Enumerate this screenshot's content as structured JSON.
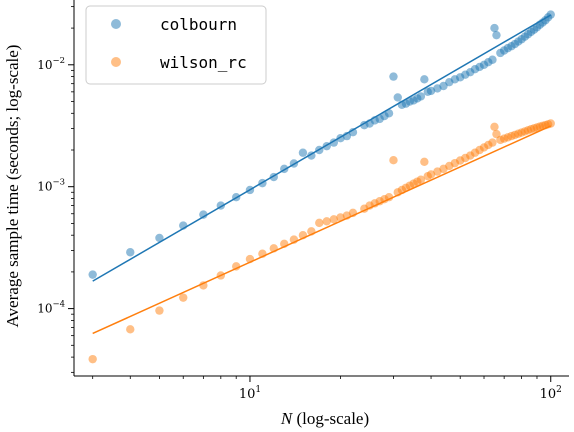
{
  "chart_data": {
    "type": "scatter",
    "xscale": "log",
    "yscale": "log",
    "xlim": [
      2.6,
      115
    ],
    "ylim": [
      2.8e-05,
      0.034
    ],
    "xlabel": "N (log-scale)",
    "xlabel_var": "N",
    "xlabel_rest": " (log-scale)",
    "ylabel": "Average sample time (seconds; log-scale)",
    "xticks": [
      {
        "value": 10,
        "base": "10",
        "exp": "1"
      },
      {
        "value": 100,
        "base": "10",
        "exp": "2"
      }
    ],
    "yticks": [
      {
        "value": 0.0001,
        "base": "10",
        "exp": "−4"
      },
      {
        "value": 0.001,
        "base": "10",
        "exp": "−3"
      },
      {
        "value": 0.01,
        "base": "10",
        "exp": "−2"
      }
    ],
    "legend_position": "top-left",
    "grid": false,
    "series": [
      {
        "name": "colbourn",
        "color": "#1f77b4",
        "points": [
          [
            3,
            0.00019
          ],
          [
            4,
            0.00029
          ],
          [
            5,
            0.00038
          ],
          [
            6,
            0.00048
          ],
          [
            7,
            0.00059
          ],
          [
            8,
            0.0007
          ],
          [
            9,
            0.00082
          ],
          [
            10,
            0.00094
          ],
          [
            11,
            0.00107
          ],
          [
            12,
            0.0012
          ],
          [
            13,
            0.0014
          ],
          [
            14,
            0.00155
          ],
          [
            15,
            0.0019
          ],
          [
            16,
            0.0018
          ],
          [
            17,
            0.002
          ],
          [
            18,
            0.00215
          ],
          [
            19,
            0.0023
          ],
          [
            20,
            0.0025
          ],
          [
            21,
            0.0026
          ],
          [
            22,
            0.0028
          ],
          [
            24,
            0.0032
          ],
          [
            25,
            0.0033
          ],
          [
            26,
            0.0035
          ],
          [
            27,
            0.0036
          ],
          [
            28,
            0.0038
          ],
          [
            29,
            0.004
          ],
          [
            30,
            0.008
          ],
          [
            31,
            0.0054
          ],
          [
            32,
            0.0047
          ],
          [
            33,
            0.0048
          ],
          [
            34,
            0.005
          ],
          [
            35,
            0.0051
          ],
          [
            36,
            0.0053
          ],
          [
            37,
            0.0055
          ],
          [
            38,
            0.0076
          ],
          [
            39,
            0.006
          ],
          [
            40,
            0.0061
          ],
          [
            42,
            0.0064
          ],
          [
            44,
            0.0067
          ],
          [
            46,
            0.0072
          ],
          [
            48,
            0.0076
          ],
          [
            50,
            0.0079
          ],
          [
            52,
            0.0083
          ],
          [
            54,
            0.0087
          ],
          [
            56,
            0.0092
          ],
          [
            58,
            0.0096
          ],
          [
            60,
            0.01
          ],
          [
            62,
            0.0105
          ],
          [
            64,
            0.011
          ],
          [
            65,
            0.02
          ],
          [
            66,
            0.0175
          ],
          [
            68,
            0.0125
          ],
          [
            70,
            0.0131
          ],
          [
            72,
            0.0137
          ],
          [
            74,
            0.0142
          ],
          [
            76,
            0.0148
          ],
          [
            78,
            0.0155
          ],
          [
            80,
            0.0162
          ],
          [
            82,
            0.017
          ],
          [
            84,
            0.0178
          ],
          [
            86,
            0.0186
          ],
          [
            88,
            0.0194
          ],
          [
            90,
            0.0203
          ],
          [
            92,
            0.0213
          ],
          [
            94,
            0.0222
          ],
          [
            96,
            0.0232
          ],
          [
            98,
            0.0245
          ],
          [
            100,
            0.0258
          ]
        ],
        "fit": [
          [
            3,
            0.000168
          ],
          [
            100,
            0.0256
          ]
        ]
      },
      {
        "name": "wilson_rc",
        "color": "#ff7f0e",
        "points": [
          [
            3,
            3.85e-05
          ],
          [
            4,
            6.76e-05
          ],
          [
            5,
            9.63e-05
          ],
          [
            6,
            0.000123
          ],
          [
            7,
            0.000155
          ],
          [
            8,
            0.000187
          ],
          [
            9,
            0.000222
          ],
          [
            10,
            0.000255
          ],
          [
            11,
            0.000282
          ],
          [
            12,
            0.000312
          ],
          [
            13,
            0.00034
          ],
          [
            14,
            0.000368
          ],
          [
            15,
            0.0004
          ],
          [
            16,
            0.00043
          ],
          [
            17,
            0.000505
          ],
          [
            18,
            0.00052
          ],
          [
            19,
            0.00054
          ],
          [
            20,
            0.00056
          ],
          [
            21,
            0.00058
          ],
          [
            22,
            0.00061
          ],
          [
            24,
            0.00066
          ],
          [
            25,
            0.0007
          ],
          [
            26,
            0.00073
          ],
          [
            27,
            0.00076
          ],
          [
            28,
            0.00079
          ],
          [
            29,
            0.00082
          ],
          [
            30,
            0.00165
          ],
          [
            31,
            0.0009
          ],
          [
            32,
            0.00094
          ],
          [
            33,
            0.00098
          ],
          [
            34,
            0.00102
          ],
          [
            35,
            0.00106
          ],
          [
            36,
            0.0011
          ],
          [
            37,
            0.00114
          ],
          [
            38,
            0.0016
          ],
          [
            39,
            0.00122
          ],
          [
            40,
            0.00126
          ],
          [
            42,
            0.00133
          ],
          [
            44,
            0.0014
          ],
          [
            46,
            0.00148
          ],
          [
            48,
            0.00156
          ],
          [
            50,
            0.00164
          ],
          [
            52,
            0.00172
          ],
          [
            54,
            0.0018
          ],
          [
            56,
            0.0019
          ],
          [
            58,
            0.002
          ],
          [
            60,
            0.0021
          ],
          [
            62,
            0.0022
          ],
          [
            64,
            0.0023
          ],
          [
            65,
            0.0031
          ],
          [
            66,
            0.0027
          ],
          [
            68,
            0.00242
          ],
          [
            70,
            0.00248
          ],
          [
            72,
            0.00254
          ],
          [
            74,
            0.0026
          ],
          [
            76,
            0.00266
          ],
          [
            78,
            0.00272
          ],
          [
            80,
            0.00278
          ],
          [
            82,
            0.00284
          ],
          [
            84,
            0.0029
          ],
          [
            86,
            0.00296
          ],
          [
            88,
            0.00301
          ],
          [
            90,
            0.00306
          ],
          [
            92,
            0.00311
          ],
          [
            94,
            0.00316
          ],
          [
            96,
            0.0032
          ],
          [
            98,
            0.00325
          ],
          [
            100,
            0.0033
          ]
        ],
        "fit": [
          [
            3,
            6.25e-05
          ],
          [
            100,
            0.00315
          ]
        ]
      }
    ]
  }
}
